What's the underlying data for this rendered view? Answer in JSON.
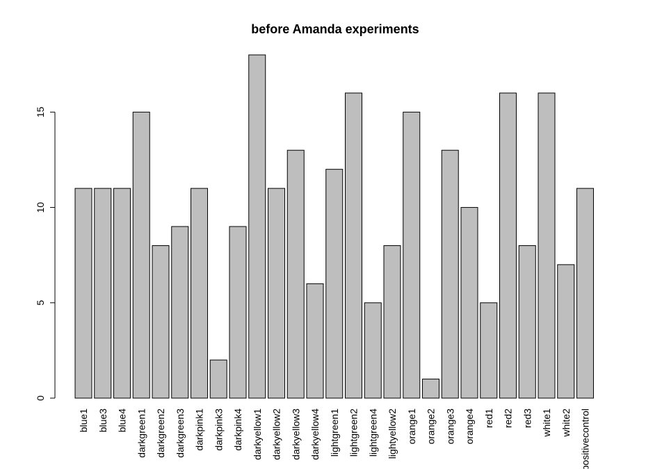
{
  "chart_data": {
    "type": "bar",
    "title": "before Amanda experiments",
    "xlabel": "",
    "ylabel": "",
    "categories": [
      "blue1",
      "blue3",
      "blue4",
      "darkgreen1",
      "darkgreen2",
      "darkgreen3",
      "darkpink1",
      "darkpink3",
      "darkpink4",
      "darkyellow1",
      "darkyellow2",
      "darkyellow3",
      "darkyellow4",
      "lightgreen1",
      "lightgreen2",
      "lightgreen4",
      "lightyellow2",
      "orange1",
      "orange2",
      "orange3",
      "orange4",
      "red1",
      "red2",
      "red3",
      "white1",
      "white2",
      "positivecontrol"
    ],
    "values": [
      11,
      11,
      11,
      15,
      8,
      9,
      11,
      2,
      9,
      18,
      11,
      13,
      6,
      12,
      16,
      5,
      8,
      15,
      1,
      13,
      10,
      5,
      16,
      8,
      16,
      7,
      11
    ],
    "ylim": [
      0,
      18
    ],
    "yticks": [
      0,
      5,
      10,
      15
    ],
    "bar_color": "#bebebe",
    "grid": false
  }
}
